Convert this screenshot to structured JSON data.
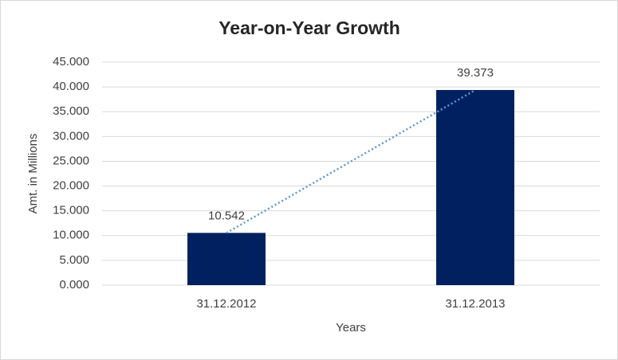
{
  "chart_data": {
    "type": "bar",
    "title": "Year-on-Year Growth",
    "x_label": "Years",
    "y_label": "Amt. in Millions",
    "categories": [
      "31.12.2012",
      "31.12.2013"
    ],
    "values": [
      10.542,
      39.373
    ],
    "color": "#002060",
    "ylim": [
      0,
      45
    ],
    "yticks": [
      {
        "value": 0,
        "label": "0.000"
      },
      {
        "value": 5,
        "label": "5.000"
      },
      {
        "value": 10,
        "label": "10.000"
      },
      {
        "value": 15,
        "label": "15.000"
      },
      {
        "value": 20,
        "label": "20.000"
      },
      {
        "value": 25,
        "label": "25.000"
      },
      {
        "value": 30,
        "label": "30.000"
      },
      {
        "value": 35,
        "label": "35.000"
      },
      {
        "value": 40,
        "label": "40.000"
      },
      {
        "value": 45,
        "label": "45.000"
      }
    ],
    "grid": true,
    "trendline": "linear",
    "trendline_color": "#5b9bd5"
  }
}
